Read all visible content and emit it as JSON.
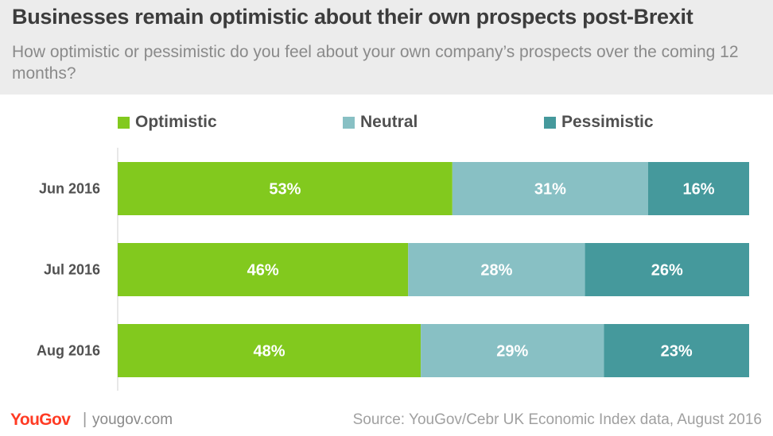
{
  "header": {
    "title": "Businesses remain optimistic about their own prospects post-Brexit",
    "subtitle": "How optimistic or pessimistic do you feel about your own company’s prospects over the coming 12 months?"
  },
  "footer": {
    "logo_text": "YouGov",
    "separator": "|",
    "url": "yougov.com",
    "source": "Source: YouGov/Cebr UK Economic Index data, August 2016"
  },
  "chart_data": {
    "type": "bar",
    "orientation": "horizontal",
    "stacked": true,
    "categories": [
      "Jun 2016",
      "Jul 2016",
      "Aug 2016"
    ],
    "series": [
      {
        "name": "Optimistic",
        "values": [
          53,
          46,
          48
        ],
        "labels": [
          "53%",
          "46%",
          "48%"
        ],
        "color": "#82c91e"
      },
      {
        "name": "Neutral",
        "values": [
          31,
          28,
          29
        ],
        "labels": [
          "31%",
          "28%",
          "29%"
        ],
        "color": "#88c0c4"
      },
      {
        "name": "Pessimistic",
        "values": [
          16,
          26,
          23
        ],
        "labels": [
          "16%",
          "26%",
          "23%"
        ],
        "color": "#45999c"
      }
    ],
    "xlim": [
      0,
      100
    ],
    "legend_position": "top",
    "grid": false
  }
}
